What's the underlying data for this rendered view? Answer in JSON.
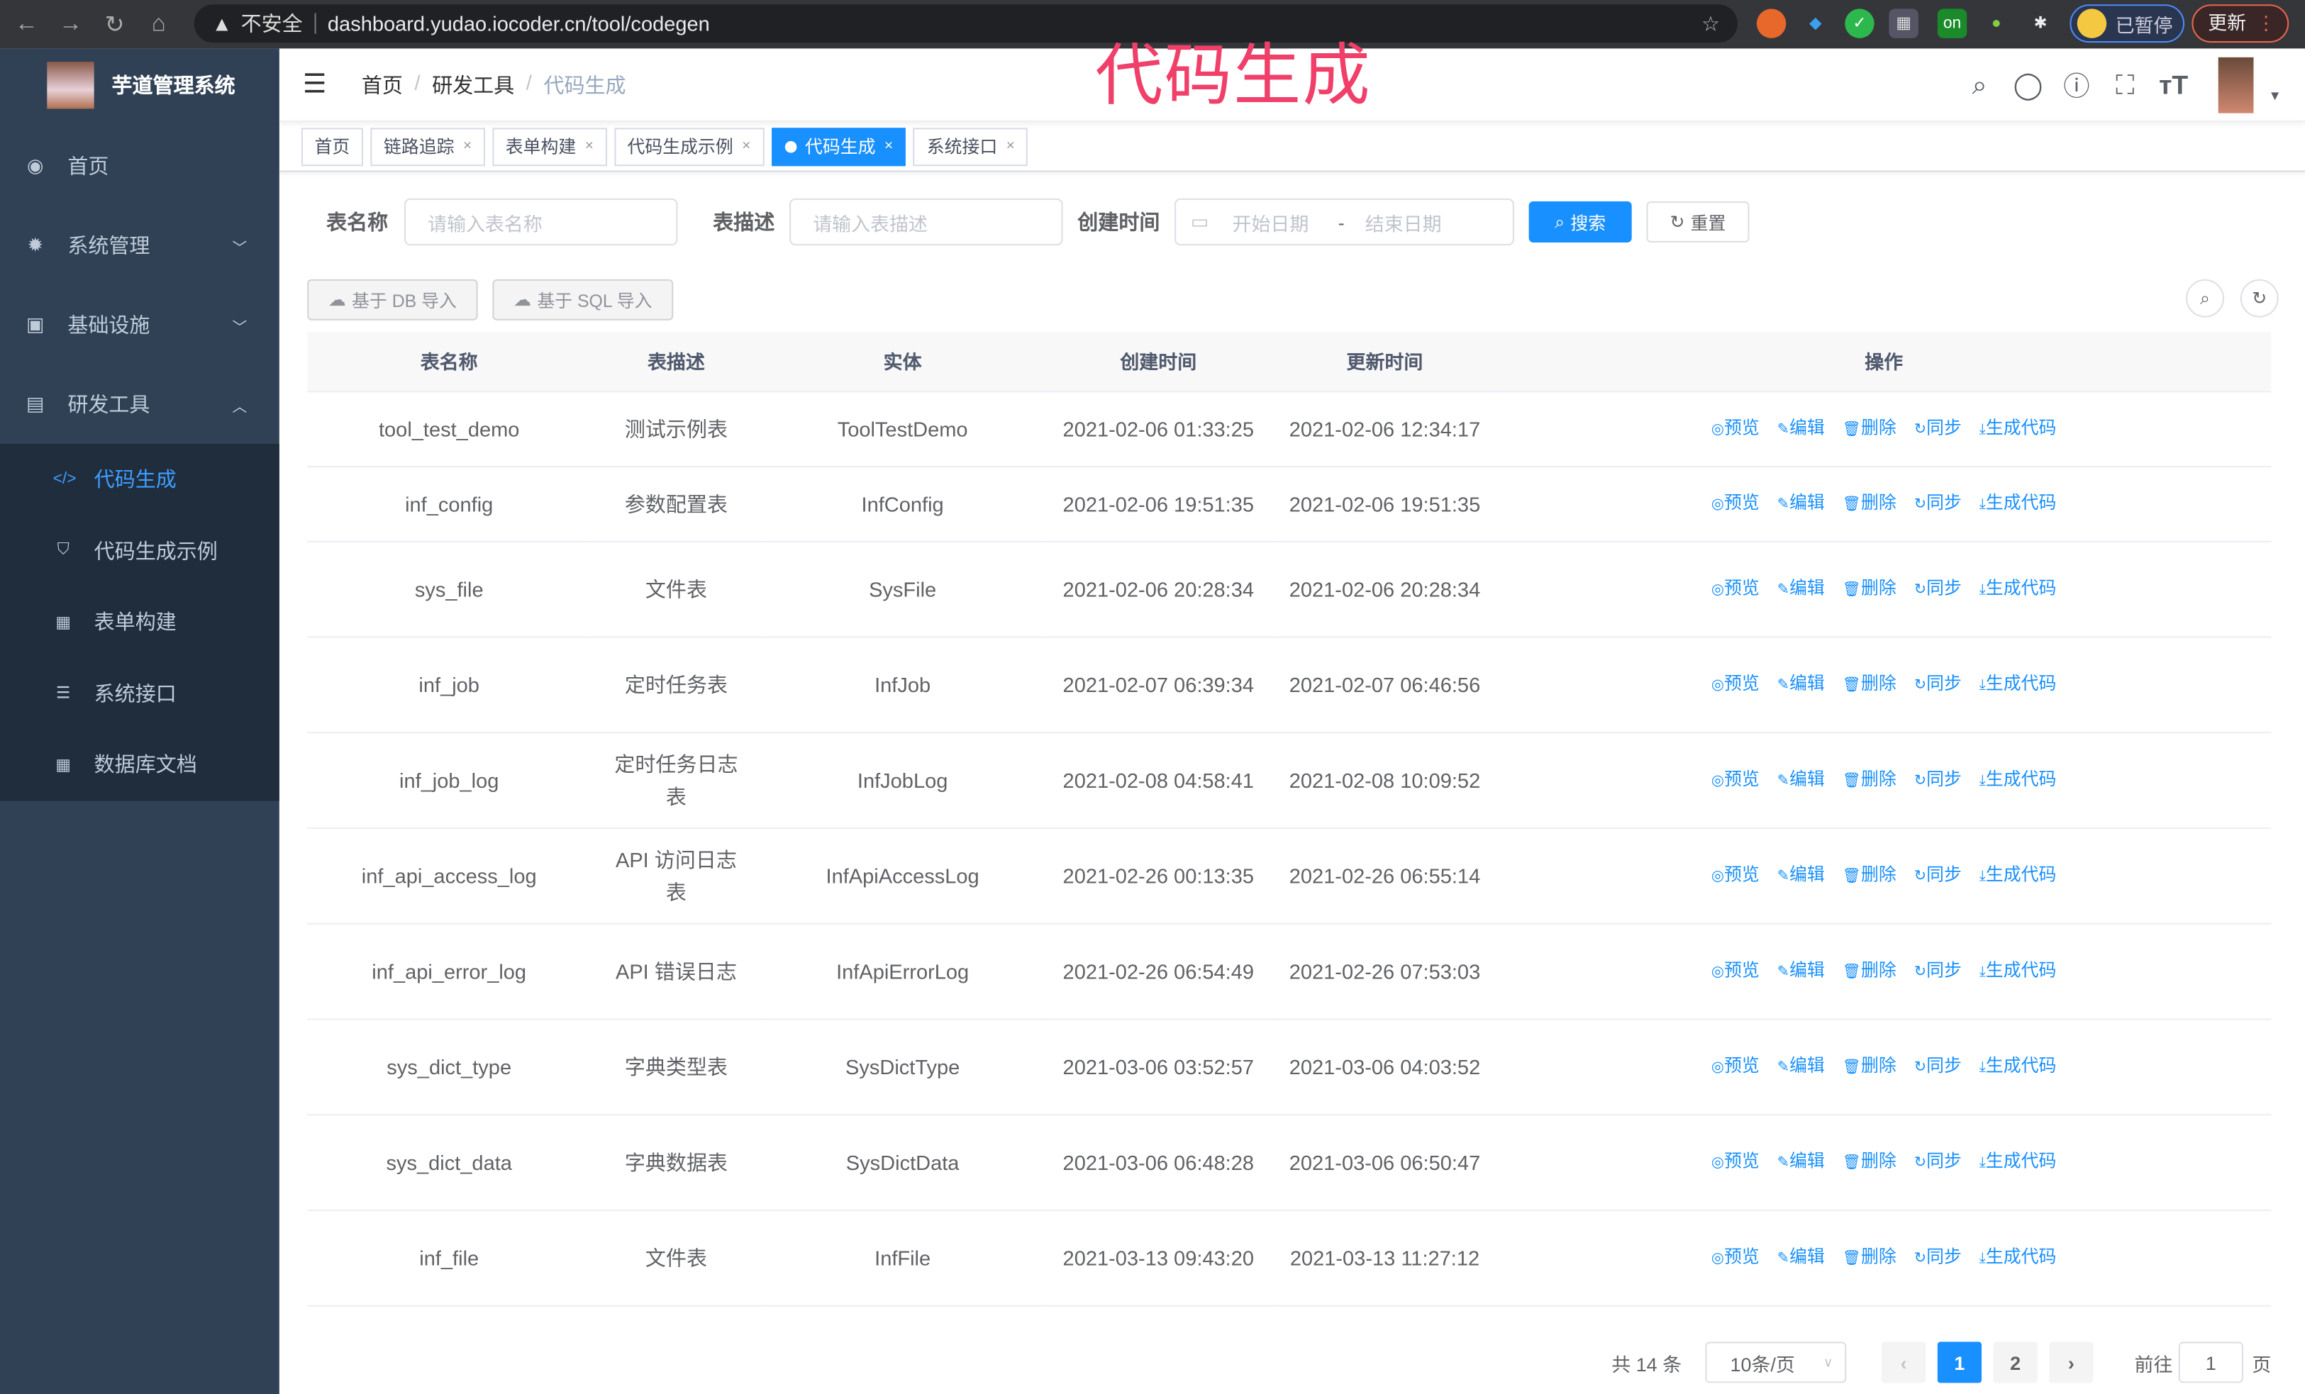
{
  "browser": {
    "url_warning": "不安全",
    "url": "dashboard.yudao.iocoder.cn/tool/codegen",
    "paused_label": "已暂停",
    "update_label": "更新"
  },
  "overlay_title": "代码生成",
  "sidebar": {
    "app_title": "芋道管理系统",
    "items": [
      {
        "label": "首页",
        "icon": "dashboard-icon"
      },
      {
        "label": "系统管理",
        "icon": "gear-icon"
      },
      {
        "label": "基础设施",
        "icon": "monitor-icon"
      },
      {
        "label": "研发工具",
        "icon": "toolbox-icon"
      }
    ],
    "sub_items": [
      {
        "label": "代码生成",
        "icon": "code-icon",
        "active": true
      },
      {
        "label": "代码生成示例",
        "icon": "shield-icon"
      },
      {
        "label": "表单构建",
        "icon": "form-icon"
      },
      {
        "label": "系统接口",
        "icon": "sliders-icon"
      },
      {
        "label": "数据库文档",
        "icon": "table-icon"
      }
    ]
  },
  "breadcrumb": [
    "首页",
    "研发工具",
    "代码生成"
  ],
  "tags": [
    {
      "label": "首页"
    },
    {
      "label": "链路追踪"
    },
    {
      "label": "表单构建"
    },
    {
      "label": "代码生成示例"
    },
    {
      "label": "代码生成",
      "active": true
    },
    {
      "label": "系统接口"
    }
  ],
  "search": {
    "table_name_label": "表名称",
    "table_name_placeholder": "请输入表名称",
    "table_desc_label": "表描述",
    "table_desc_placeholder": "请输入表描述",
    "create_time_label": "创建时间",
    "start_placeholder": "开始日期",
    "range_sep": "-",
    "end_placeholder": "结束日期",
    "search_button": "搜索",
    "reset_button": "重置"
  },
  "toolbar": {
    "import_db": "基于 DB 导入",
    "import_sql": "基于 SQL 导入"
  },
  "table": {
    "headers": [
      "表名称",
      "表描述",
      "实体",
      "创建时间",
      "更新时间",
      "操作"
    ],
    "actions": [
      "预览",
      "编辑",
      "删除",
      "同步",
      "生成代码"
    ],
    "rows": [
      [
        "tool_test_demo",
        "测试示例表",
        "ToolTestDemo",
        "2021-02-06 01:33:25",
        "2021-02-06 12:34:17"
      ],
      [
        "inf_config",
        "参数配置表",
        "InfConfig",
        "2021-02-06 19:51:35",
        "2021-02-06 19:51:35"
      ],
      [
        "sys_file",
        "文件表",
        "SysFile",
        "2021-02-06 20:28:34",
        "2021-02-06 20:28:34"
      ],
      [
        "inf_job",
        "定时任务表",
        "InfJob",
        "2021-02-07 06:39:34",
        "2021-02-07 06:46:56"
      ],
      [
        "inf_job_log",
        "定时任务日志表",
        "InfJobLog",
        "2021-02-08 04:58:41",
        "2021-02-08 10:09:52"
      ],
      [
        "inf_api_access_log",
        "API 访问日志表",
        "InfApiAccessLog",
        "2021-02-26 00:13:35",
        "2021-02-26 06:55:14"
      ],
      [
        "inf_api_error_log",
        "API 错误日志",
        "InfApiErrorLog",
        "2021-02-26 06:54:49",
        "2021-02-26 07:53:03"
      ],
      [
        "sys_dict_type",
        "字典类型表",
        "SysDictType",
        "2021-03-06 03:52:57",
        "2021-03-06 04:03:52"
      ],
      [
        "sys_dict_data",
        "字典数据表",
        "SysDictData",
        "2021-03-06 06:48:28",
        "2021-03-06 06:50:47"
      ],
      [
        "inf_file",
        "文件表",
        "InfFile",
        "2021-03-13 09:43:20",
        "2021-03-13 11:27:12"
      ]
    ]
  },
  "pagination": {
    "total": "共 14 条",
    "page_size": "10条/页",
    "pages": [
      "1",
      "2"
    ],
    "current": "1",
    "goto_label": "前往",
    "goto_value": "1",
    "page_suffix": "页"
  }
}
